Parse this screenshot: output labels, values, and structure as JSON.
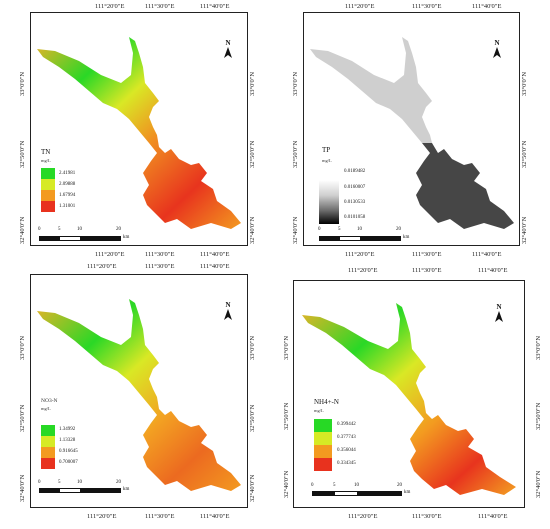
{
  "panels": [
    {
      "title": "TN",
      "unit": "mg/L",
      "legend": [
        "2.41981",
        "2.09888",
        "1.67994",
        "1.31001"
      ],
      "legend_colors": [
        "#27d925",
        "#d6ea25",
        "#f39a20",
        "#e8321e"
      ],
      "fill": "gradient",
      "top_ticks": [
        "111°20'0\"E",
        "111°30'0\"E",
        "111°40'0\"E"
      ],
      "bottom_ticks": [
        "111°20'0\"E",
        "111°30'0\"E",
        "111°40'0\"E"
      ],
      "left_ticks": [
        "32°40'0\"N",
        "32°50'0\"N",
        "33°0'0\"N"
      ],
      "right_ticks": [
        "32°40'0\"N",
        "32°50'0\"N",
        "33°0'0\"N"
      ],
      "scale": [
        "0",
        "5",
        "10",
        "20"
      ],
      "scale_unit": "km",
      "north": "N"
    },
    {
      "title": "TP",
      "unit": "mg/L",
      "legend": [
        "0.0189482",
        "0.0160007",
        "0.0130533",
        "0.0101058"
      ],
      "legend_colors": [
        "#ffffff",
        "#cfcfcf",
        "#7f7f7f",
        "#111111"
      ],
      "fill": "gray",
      "top_ticks": [
        "111°20'0\"E",
        "111°30'0\"E",
        "111°40'0\"E"
      ],
      "bottom_ticks": [
        "111°20'0\"E",
        "111°30'0\"E",
        "111°40'0\"E"
      ],
      "left_ticks": [
        "32°40'0\"N",
        "32°50'0\"N",
        "33°0'0\"N"
      ],
      "right_ticks": [
        "32°40'0\"N",
        "32°50'0\"N",
        "33°0'0\"N"
      ],
      "scale": [
        "0",
        "5",
        "10",
        "20"
      ],
      "scale_unit": "km",
      "north": "N"
    },
    {
      "title": "NO3-N",
      "unit": "mg/L",
      "legend": [
        "1.34992",
        "1.13328",
        "0.916645",
        "0.700007"
      ],
      "legend_colors": [
        "#27d925",
        "#d6ea25",
        "#f39a20",
        "#e8321e"
      ],
      "fill": "gradient",
      "top_ticks": [
        "111°20'0\"E",
        "111°30'0\"E",
        "111°40'0\"E"
      ],
      "bottom_ticks": [
        "111°20'0\"E",
        "111°30'0\"E",
        "111°40'0\"E"
      ],
      "left_ticks": [
        "32°40'0\"N",
        "32°50'0\"N",
        "33°0'0\"N"
      ],
      "right_ticks": [
        "32°40'0\"N",
        "32°50'0\"N",
        "33°0'0\"N"
      ],
      "scale": [
        "0",
        "5",
        "10",
        "20"
      ],
      "scale_unit": "km",
      "north": "N"
    },
    {
      "title": "NH4+-N",
      "unit": "mg/L",
      "legend": [
        "0.399442",
        "0.377743",
        "0.356044",
        "0.334345"
      ],
      "legend_colors": [
        "#27d925",
        "#d6ea25",
        "#f39a20",
        "#e8321e"
      ],
      "fill": "gradient",
      "top_ticks": [
        "111°20'0\"E",
        "111°30'0\"E",
        "111°40'0\"E"
      ],
      "bottom_ticks": [
        "111°20'0\"E",
        "111°30'0\"E",
        "111°40'0\"E"
      ],
      "left_ticks": [
        "32°40'0\"N",
        "32°50'0\"N",
        "33°0'0\"N"
      ],
      "right_ticks": [
        "32°40'0\"N",
        "32°50'0\"N",
        "33°0'0\"N"
      ],
      "scale": [
        "0",
        "5",
        "10",
        "20"
      ],
      "scale_unit": "km",
      "north": "N"
    }
  ]
}
